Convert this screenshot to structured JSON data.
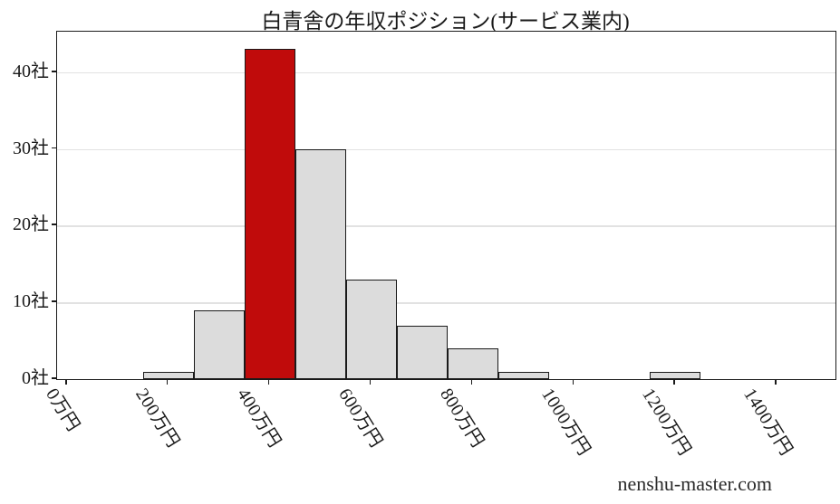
{
  "watermark": {
    "text": "nenshu-master.com"
  },
  "colors": {
    "bar_fill": "#dcdcdc",
    "bar_highlight_fill": "#c00b0b",
    "bar_edge": "#1a1a1a",
    "grid": "#e2e2e2",
    "text": "#1a1a1a"
  },
  "chart_data": {
    "type": "bar",
    "title": "白青舎の年収ポジション(サービス業内)",
    "xlabel": "",
    "ylabel": "",
    "x_unit": "万円",
    "y_unit": "社",
    "grid": "horizontal",
    "legend": "none",
    "xlim": [
      -20,
      1516
    ],
    "ylim": [
      0,
      45.3
    ],
    "x_tick_values": [
      0,
      200,
      400,
      600,
      800,
      1000,
      1200,
      1400
    ],
    "x_tick_labels": [
      "0万円",
      "200万円",
      "400万円",
      "600万円",
      "800万円",
      "1000万円",
      "1200万円",
      "1400万円"
    ],
    "y_tick_values": [
      0,
      10,
      20,
      30,
      40
    ],
    "y_tick_labels": [
      "0社",
      "10社",
      "20社",
      "30社",
      "40社"
    ],
    "bin_width": 100,
    "bins": [
      {
        "center": 200,
        "count": 1,
        "highlight": false
      },
      {
        "center": 300,
        "count": 9,
        "highlight": false
      },
      {
        "center": 400,
        "count": 43,
        "highlight": true
      },
      {
        "center": 500,
        "count": 30,
        "highlight": false
      },
      {
        "center": 600,
        "count": 13,
        "highlight": false
      },
      {
        "center": 700,
        "count": 7,
        "highlight": false
      },
      {
        "center": 800,
        "count": 4,
        "highlight": false
      },
      {
        "center": 900,
        "count": 1,
        "highlight": false
      },
      {
        "center": 1200,
        "count": 1,
        "highlight": false
      }
    ]
  }
}
